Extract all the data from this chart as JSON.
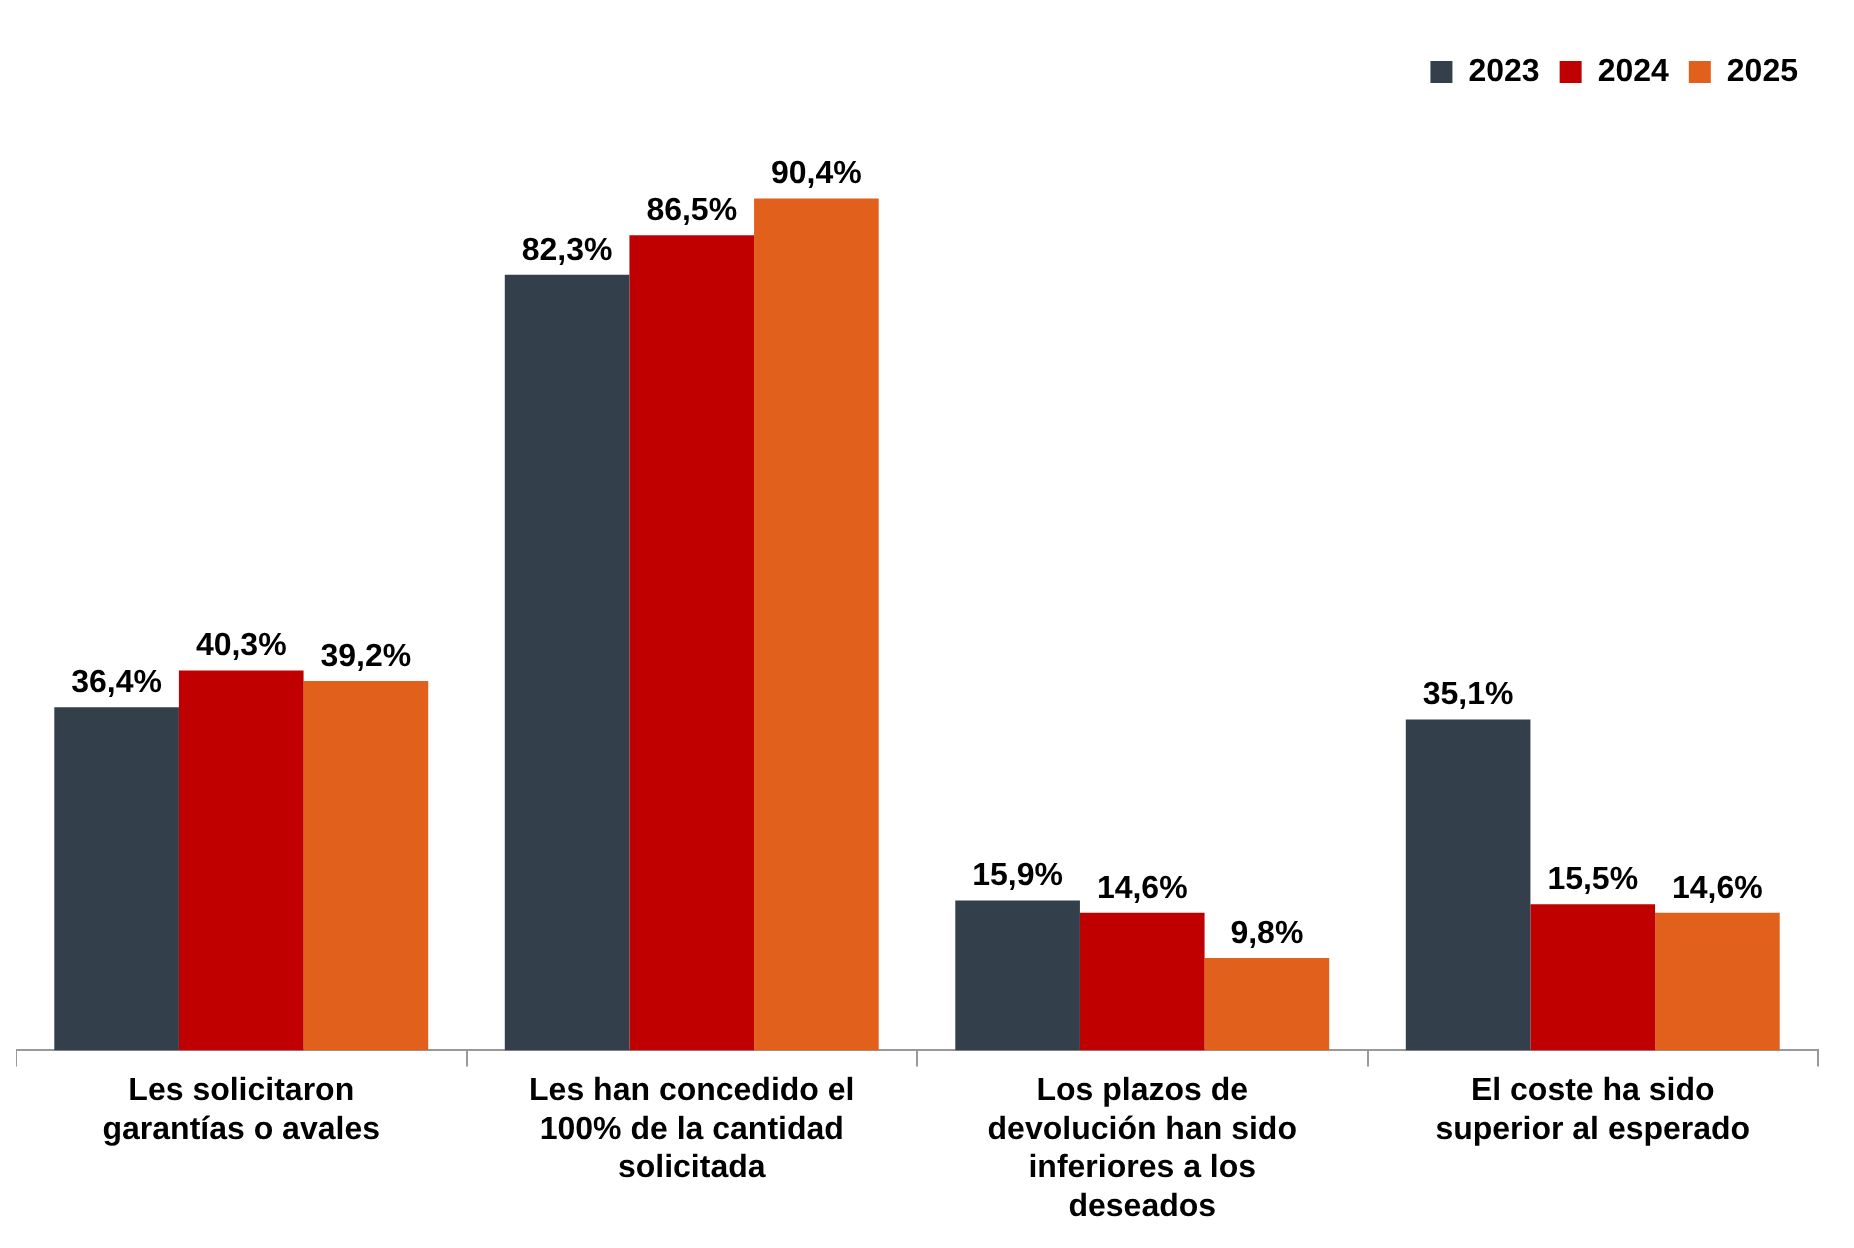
{
  "chart_data": {
    "type": "bar",
    "categories": [
      "Les solicitaron garantías o avales",
      "Les han concedido el 100% de la cantidad solicitada",
      "Los plazos de devolución han sido inferiores a los deseados",
      "El coste ha sido superior al esperado"
    ],
    "series": [
      {
        "name": "2023",
        "color": "#333f4a",
        "values": [
          36.4,
          82.3,
          15.9,
          35.1
        ],
        "value_labels": [
          "36,4%",
          "82,3%",
          "15,9%",
          "35,1%"
        ]
      },
      {
        "name": "2024",
        "color": "#c00000",
        "values": [
          40.3,
          86.5,
          14.6,
          15.5
        ],
        "value_labels": [
          "40,3%",
          "86,5%",
          "14,6%",
          "15,5%"
        ]
      },
      {
        "name": "2025",
        "color": "#e0601c",
        "values": [
          39.2,
          90.4,
          9.8,
          14.6
        ],
        "value_labels": [
          "39,2%",
          "90,4%",
          "9,8%",
          "14,6%"
        ]
      }
    ],
    "legend": "top right",
    "grid": false
  }
}
